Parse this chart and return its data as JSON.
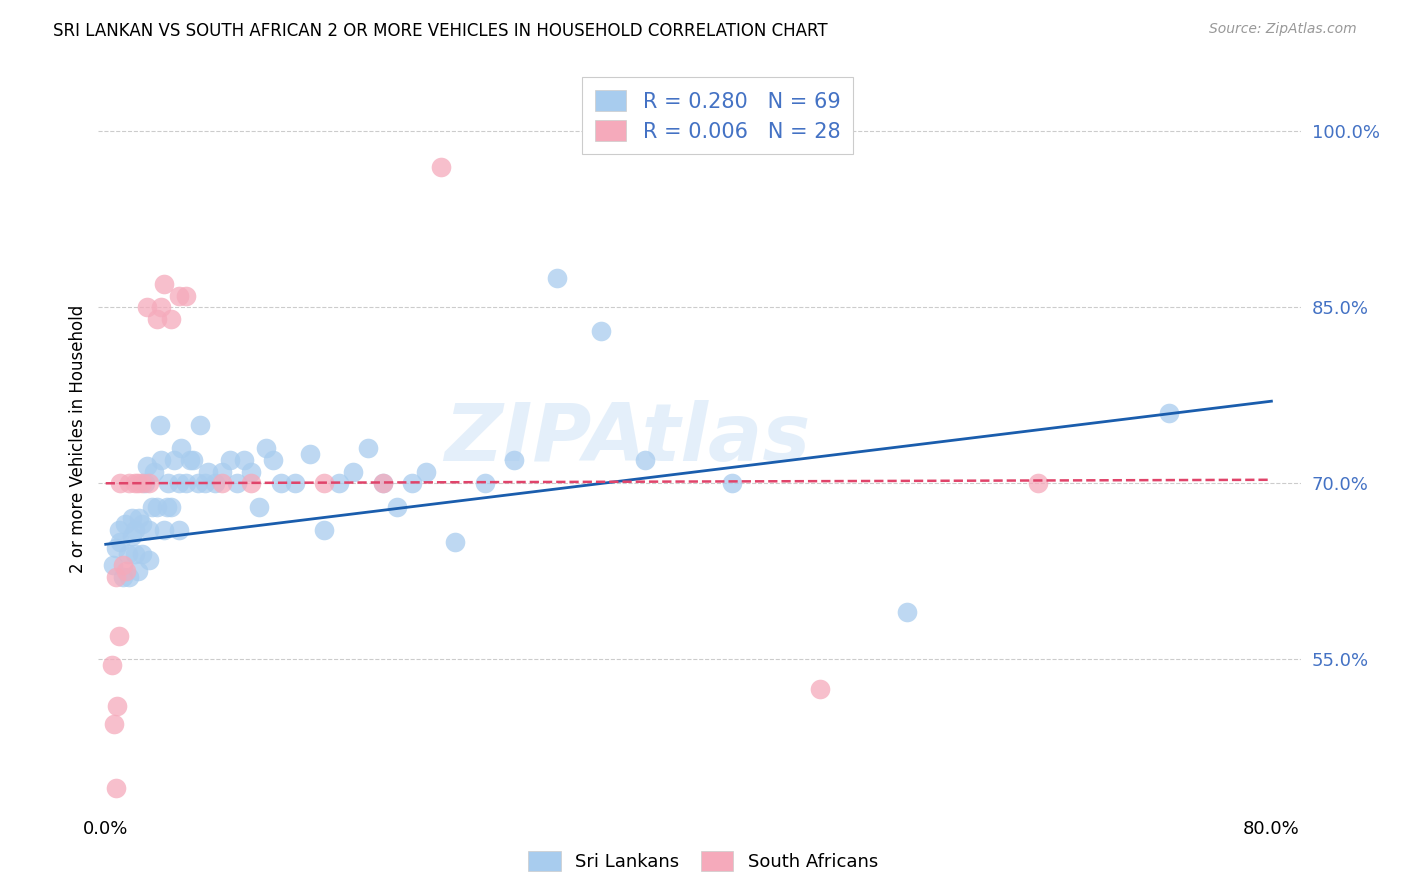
{
  "title": "SRI LANKAN VS SOUTH AFRICAN 2 OR MORE VEHICLES IN HOUSEHOLD CORRELATION CHART",
  "source": "Source: ZipAtlas.com",
  "ylabel": "2 or more Vehicles in Household",
  "ytick_labels": [
    "55.0%",
    "70.0%",
    "85.0%",
    "100.0%"
  ],
  "ytick_values": [
    0.55,
    0.7,
    0.85,
    1.0
  ],
  "xlim": [
    -0.005,
    0.82
  ],
  "ylim": [
    0.42,
    1.055
  ],
  "legend_blue_r": "R = 0.280",
  "legend_blue_n": "N = 69",
  "legend_pink_r": "R = 0.006",
  "legend_pink_n": "N = 28",
  "blue_color": "#A8CCEE",
  "pink_color": "#F5AABB",
  "blue_line_color": "#1A5DAD",
  "pink_line_color": "#E0446A",
  "legend_text_color": "#4472C4",
  "ytick_color": "#4472C4",
  "watermark_color": "#C5DDF5",
  "blue_points_x": [
    0.005,
    0.007,
    0.009,
    0.01,
    0.012,
    0.013,
    0.015,
    0.016,
    0.018,
    0.018,
    0.02,
    0.02,
    0.022,
    0.023,
    0.025,
    0.025,
    0.027,
    0.028,
    0.03,
    0.03,
    0.032,
    0.033,
    0.035,
    0.037,
    0.038,
    0.04,
    0.042,
    0.043,
    0.045,
    0.047,
    0.05,
    0.05,
    0.052,
    0.055,
    0.058,
    0.06,
    0.063,
    0.065,
    0.068,
    0.07,
    0.075,
    0.08,
    0.085,
    0.09,
    0.095,
    0.1,
    0.105,
    0.11,
    0.115,
    0.12,
    0.13,
    0.14,
    0.15,
    0.16,
    0.17,
    0.18,
    0.19,
    0.2,
    0.21,
    0.22,
    0.24,
    0.26,
    0.28,
    0.31,
    0.34,
    0.37,
    0.43,
    0.55,
    0.73
  ],
  "blue_points_y": [
    0.63,
    0.645,
    0.66,
    0.65,
    0.62,
    0.665,
    0.64,
    0.62,
    0.655,
    0.67,
    0.64,
    0.66,
    0.625,
    0.67,
    0.64,
    0.665,
    0.7,
    0.715,
    0.635,
    0.66,
    0.68,
    0.71,
    0.68,
    0.75,
    0.72,
    0.66,
    0.68,
    0.7,
    0.68,
    0.72,
    0.66,
    0.7,
    0.73,
    0.7,
    0.72,
    0.72,
    0.7,
    0.75,
    0.7,
    0.71,
    0.7,
    0.71,
    0.72,
    0.7,
    0.72,
    0.71,
    0.68,
    0.73,
    0.72,
    0.7,
    0.7,
    0.725,
    0.66,
    0.7,
    0.71,
    0.73,
    0.7,
    0.68,
    0.7,
    0.71,
    0.65,
    0.7,
    0.72,
    0.875,
    0.83,
    0.72,
    0.7,
    0.59,
    0.76
  ],
  "pink_points_x": [
    0.004,
    0.006,
    0.007,
    0.009,
    0.01,
    0.012,
    0.014,
    0.016,
    0.02,
    0.022,
    0.025,
    0.028,
    0.03,
    0.035,
    0.038,
    0.04,
    0.045,
    0.05,
    0.055,
    0.08,
    0.1,
    0.15,
    0.19,
    0.23,
    0.49,
    0.64,
    0.007,
    0.008
  ],
  "pink_points_y": [
    0.545,
    0.495,
    0.62,
    0.57,
    0.7,
    0.63,
    0.625,
    0.7,
    0.7,
    0.7,
    0.7,
    0.85,
    0.7,
    0.84,
    0.85,
    0.87,
    0.84,
    0.86,
    0.86,
    0.7,
    0.7,
    0.7,
    0.7,
    0.97,
    0.525,
    0.7,
    0.44,
    0.51
  ],
  "blue_line_x": [
    0.0,
    0.8
  ],
  "blue_line_y_start": 0.648,
  "blue_line_y_end": 0.77,
  "pink_line_x": [
    0.0,
    0.8
  ],
  "pink_line_y_start": 0.7,
  "pink_line_y_end": 0.703
}
